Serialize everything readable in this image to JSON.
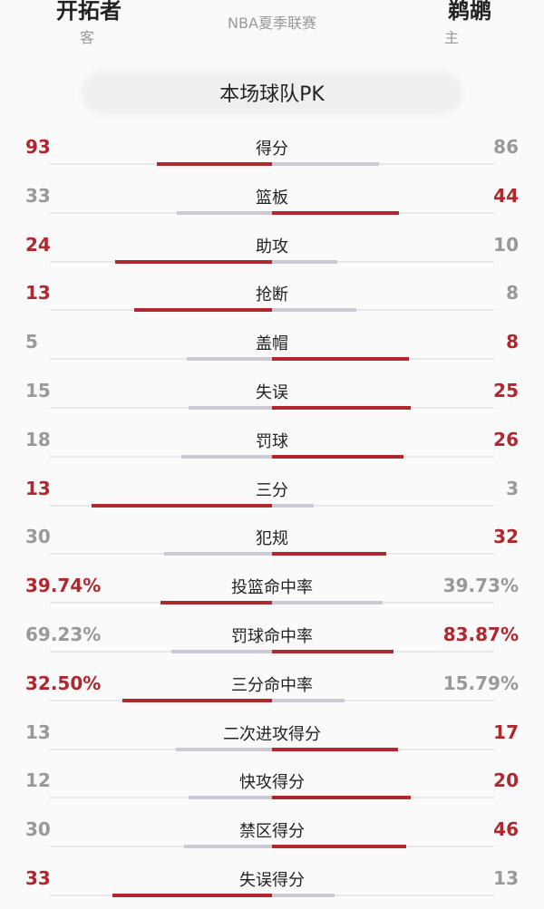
{
  "header": {
    "away_team": "开拓者",
    "away_role": "客",
    "home_team": "鹈鹕",
    "home_role": "主",
    "league": "NBA夏季联赛"
  },
  "title": "本场球队PK",
  "colors": {
    "win": "#b0272e",
    "lose_bar": "#c9cad3",
    "lose_text": "#999999"
  },
  "stats": [
    {
      "label": "得分",
      "away": "93",
      "home": "86",
      "a": 93,
      "h": 86
    },
    {
      "label": "篮板",
      "away": "33",
      "home": "44",
      "a": 33,
      "h": 44
    },
    {
      "label": "助攻",
      "away": "24",
      "home": "10",
      "a": 24,
      "h": 10
    },
    {
      "label": "抢断",
      "away": "13",
      "home": "8",
      "a": 13,
      "h": 8
    },
    {
      "label": "盖帽",
      "away": "5",
      "home": "8",
      "a": 5,
      "h": 8
    },
    {
      "label": "失误",
      "away": "15",
      "home": "25",
      "a": 15,
      "h": 25
    },
    {
      "label": "罚球",
      "away": "18",
      "home": "26",
      "a": 18,
      "h": 26
    },
    {
      "label": "三分",
      "away": "13",
      "home": "3",
      "a": 13,
      "h": 3
    },
    {
      "label": "犯规",
      "away": "30",
      "home": "32",
      "a": 30,
      "h": 32
    },
    {
      "label": "投篮命中率",
      "away": "39.74%",
      "home": "39.73%",
      "a": 39.74,
      "h": 39.73
    },
    {
      "label": "罚球命中率",
      "away": "69.23%",
      "home": "83.87%",
      "a": 69.23,
      "h": 83.87
    },
    {
      "label": "三分命中率",
      "away": "32.50%",
      "home": "15.79%",
      "a": 32.5,
      "h": 15.79
    },
    {
      "label": "二次进攻得分",
      "away": "13",
      "home": "17",
      "a": 13,
      "h": 17
    },
    {
      "label": "快攻得分",
      "away": "12",
      "home": "20",
      "a": 12,
      "h": 20
    },
    {
      "label": "禁区得分",
      "away": "30",
      "home": "46",
      "a": 30,
      "h": 46
    },
    {
      "label": "失误得分",
      "away": "33",
      "home": "13",
      "a": 33,
      "h": 13
    }
  ]
}
